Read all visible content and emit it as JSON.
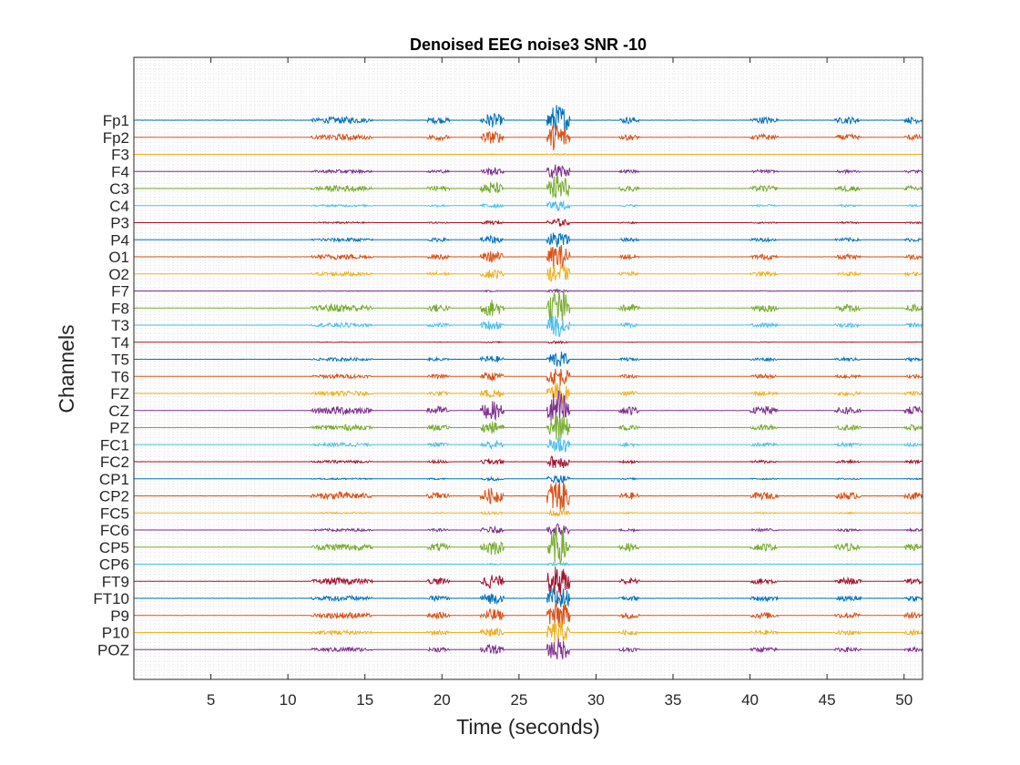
{
  "chart_data": {
    "type": "line",
    "title": "Denoised EEG noise3 SNR -10",
    "xlabel": "Time (seconds)",
    "ylabel": "Channels",
    "xlim": [
      0,
      51.2
    ],
    "x_ticks": [
      5,
      10,
      15,
      20,
      25,
      30,
      35,
      40,
      45,
      50
    ],
    "x_tick_labels": [
      "5",
      "10",
      "15",
      "20",
      "25",
      "30",
      "35",
      "40",
      "45",
      "50"
    ],
    "grid": true,
    "channels": [
      "Fp1",
      "Fp2",
      "F3",
      "F4",
      "C3",
      "C4",
      "P3",
      "P4",
      "O1",
      "O2",
      "F7",
      "F8",
      "T3",
      "T4",
      "T5",
      "T6",
      "FZ",
      "CZ",
      "PZ",
      "FC1",
      "FC2",
      "CP1",
      "CP2",
      "FC5",
      "FC6",
      "CP5",
      "CP6",
      "FT9",
      "FT10",
      "P9",
      "P10",
      "POZ"
    ],
    "channel_colors": [
      "#0072BD",
      "#D95319",
      "#EDB120",
      "#7E2F8E",
      "#77AC30",
      "#4DBEEE",
      "#A2142F"
    ],
    "activity_bursts_seconds": [
      {
        "start": 11.5,
        "end": 15.5
      },
      {
        "start": 19.0,
        "end": 20.5
      },
      {
        "start": 22.5,
        "end": 24.0
      },
      {
        "start": 26.8,
        "end": 28.3
      },
      {
        "start": 31.5,
        "end": 32.8
      },
      {
        "start": 40.0,
        "end": 41.8
      },
      {
        "start": 45.5,
        "end": 47.2
      },
      {
        "start": 50.0,
        "end": 51.2
      }
    ],
    "channel_relative_amplitude": [
      1.0,
      0.9,
      0.05,
      0.5,
      0.9,
      0.35,
      0.25,
      0.55,
      0.8,
      0.65,
      0.1,
      1.2,
      0.7,
      0.1,
      0.5,
      0.6,
      0.7,
      1.3,
      0.85,
      0.6,
      0.45,
      0.25,
      1.1,
      0.2,
      0.45,
      1.15,
      0.1,
      1.0,
      0.8,
      0.95,
      0.75,
      0.7
    ]
  }
}
